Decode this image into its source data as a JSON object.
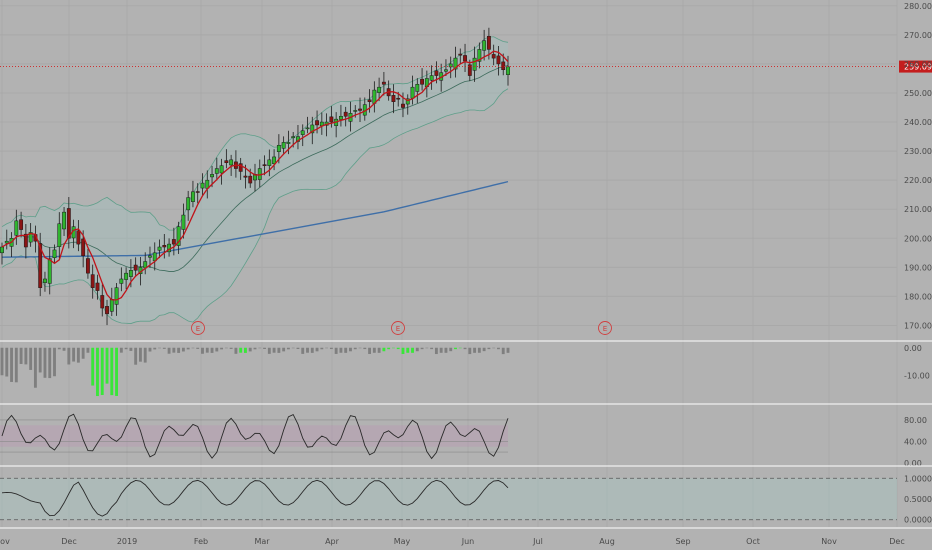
{
  "chart_data": {
    "type": "candlestick",
    "price_axis": {
      "ticks": [
        "280.00",
        "270.00",
        "260.00",
        "250.00",
        "240.00",
        "230.00",
        "220.00",
        "210.00",
        "200.00",
        "190.00",
        "180.00",
        "170.00"
      ],
      "range": [
        165,
        282
      ]
    },
    "last_price": {
      "value": 259.09,
      "label": "259.09"
    },
    "time_axis": {
      "labels": [
        "Nov",
        "Dec",
        "2019",
        "Feb",
        "Mar",
        "Apr",
        "May",
        "Jun",
        "Jul",
        "Aug",
        "Sep",
        "Oct",
        "Nov",
        "Dec"
      ]
    },
    "earnings_markers": {
      "label": "E",
      "count": 3
    },
    "close_series": [
      197,
      199,
      200,
      206,
      203,
      197,
      202,
      199,
      183,
      186,
      193,
      196,
      205,
      209,
      200,
      204,
      198,
      194,
      188,
      183,
      182,
      176,
      174,
      179,
      183,
      186,
      188,
      189,
      189,
      190,
      192,
      194,
      195,
      197,
      197,
      198,
      198,
      204,
      208,
      214,
      216,
      216,
      219,
      220,
      222,
      224,
      225,
      226,
      227,
      224,
      223,
      221,
      219,
      222,
      224,
      225,
      227,
      228,
      232,
      233,
      233,
      235,
      235,
      237,
      238,
      239,
      239,
      240,
      240,
      240,
      241,
      242,
      242,
      243,
      244,
      244,
      246,
      247,
      251,
      252,
      253,
      249,
      247,
      248,
      245,
      248,
      252,
      253,
      253,
      255,
      256,
      256,
      257,
      258,
      260,
      262,
      263,
      261,
      256,
      262,
      265,
      268,
      265,
      262,
      260,
      258,
      259
    ],
    "indicator_1": {
      "ticks": [
        "0.00",
        "-10.00"
      ],
      "range": [
        -19,
        1
      ]
    },
    "indicator_2": {
      "ticks": [
        "80.00",
        "40.00",
        "0.00"
      ],
      "range": [
        -6,
        106
      ]
    },
    "indicator_3": {
      "ticks": [
        "1.0000",
        "0.5000",
        "0.0000"
      ],
      "range": [
        -0.2,
        1.2
      ]
    }
  }
}
